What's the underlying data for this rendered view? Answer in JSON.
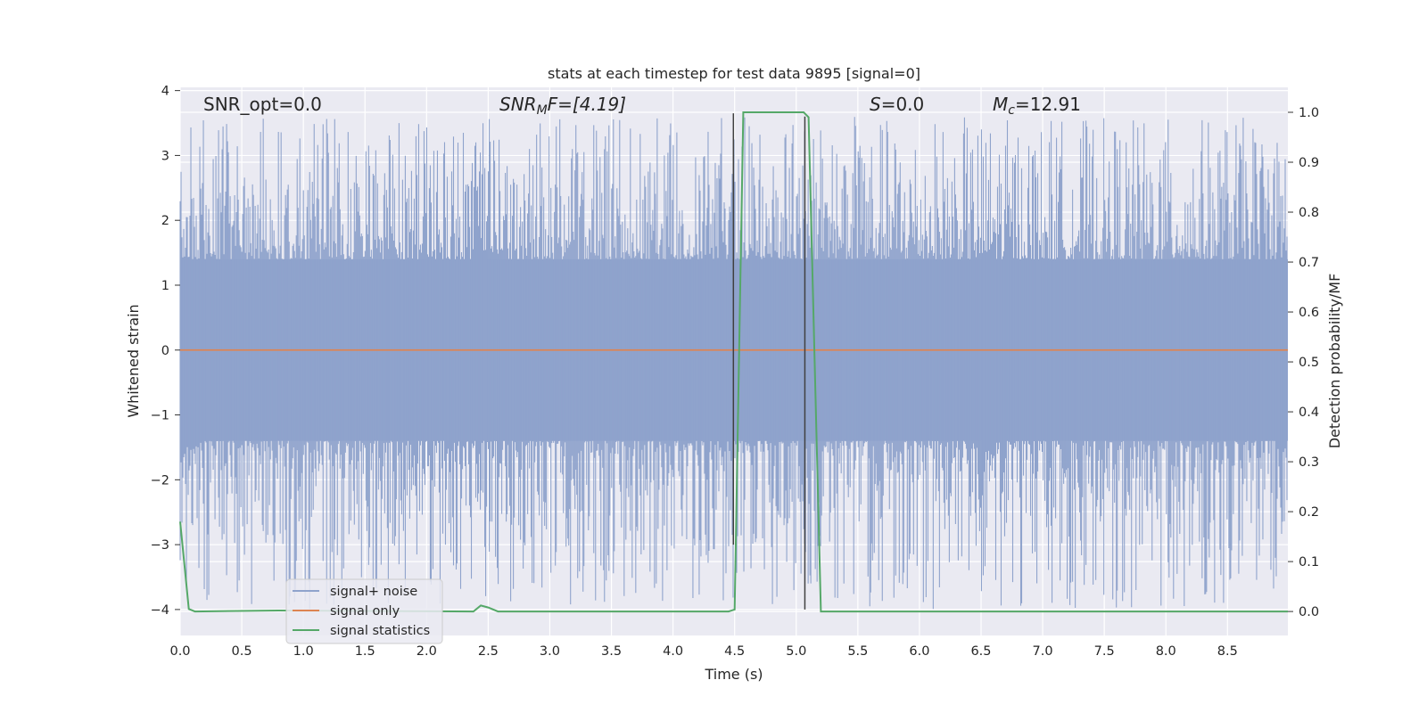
{
  "chart_data": {
    "type": "line",
    "title": "stats at each timestep for test data 9895 [signal=0]",
    "xlabel": "Time (s)",
    "ylabel": "Whitened strain",
    "ylabel_right": "Detection probability/MF",
    "xlim": [
      0.0,
      8.99
    ],
    "ylim": [
      -4.4,
      4.05
    ],
    "ylim_right": [
      -0.048,
      1.05
    ],
    "x_ticks": [
      "0.0",
      "0.5",
      "1.0",
      "1.5",
      "2.0",
      "2.5",
      "3.0",
      "3.5",
      "4.0",
      "4.5",
      "5.0",
      "5.5",
      "6.0",
      "6.5",
      "7.0",
      "7.5",
      "8.0",
      "8.5"
    ],
    "y_ticks": [
      "4",
      "3",
      "2",
      "1",
      "0",
      "−1",
      "−2",
      "−3",
      "−4"
    ],
    "y_right_ticks": [
      "1.0",
      "0.9",
      "0.8",
      "0.7",
      "0.6",
      "0.5",
      "0.4",
      "0.3",
      "0.2",
      "0.1",
      "0.0"
    ],
    "grid": true,
    "legend_position": "lower-left",
    "annotations": {
      "snr_opt": "SNR_opt=0.0",
      "snr_mf_sym": "SNR",
      "snr_mf_sub": "M",
      "snr_mf_rest": "F=[4.19]",
      "s_sym": "S",
      "s_rest": "=0.0",
      "mc_sym": "M",
      "mc_sub": "c",
      "mc_rest": "=12.91"
    },
    "series": [
      {
        "name": "signal+ noise",
        "color": "#8fa3cc",
        "kind": "noise",
        "envelope": {
          "typical_abs": 1.4,
          "upper_peaks_max": 3.6,
          "lower_peaks_min": -4.0
        }
      },
      {
        "name": "signal only",
        "color": "#dd8452",
        "kind": "flat",
        "value": 0.0
      },
      {
        "name": "signal statistics",
        "color": "#55a868",
        "axis": "right",
        "x": [
          0.0,
          0.07,
          0.12,
          0.8,
          2.38,
          2.44,
          2.5,
          2.58,
          4.45,
          4.5,
          4.57,
          5.06,
          5.1,
          5.2,
          8.99
        ],
        "y": [
          0.18,
          0.005,
          0.0,
          0.002,
          0.0,
          0.012,
          0.008,
          0.0,
          0.0,
          0.004,
          1.0,
          1.0,
          0.99,
          0.0,
          0.0
        ]
      }
    ],
    "vlines": [
      {
        "x": 4.49,
        "ymin": -3.0,
        "ymax": 3.65,
        "color": "#404040"
      },
      {
        "x": 5.07,
        "ymin": -4.0,
        "ymax": 3.6,
        "color": "#404040"
      }
    ]
  }
}
